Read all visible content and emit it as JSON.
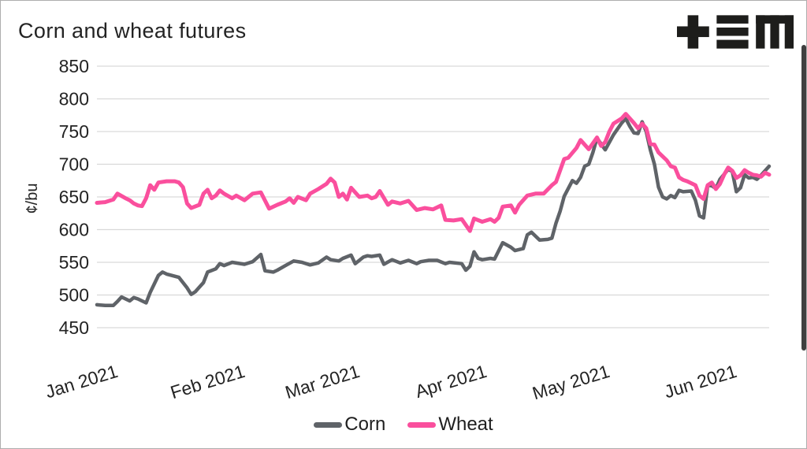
{
  "title": "Corn and wheat futures",
  "logo": {
    "glyphs": [
      "plus",
      "triple-bar",
      "letter-m"
    ],
    "color": "#1d1d1b"
  },
  "colors": {
    "corn": "#5f6368",
    "wheat": "#fa4f9d",
    "grid": "#d9d9d9",
    "text": "#232323",
    "scrollbar": "#3f3f3f",
    "frame_border": "#aeaeae"
  },
  "legend": {
    "corn_label": "Corn",
    "wheat_label": "Wheat"
  },
  "chart_data": {
    "type": "line",
    "title": "Corn and wheat futures",
    "xlabel": "",
    "ylabel": "¢/bu",
    "ylim": [
      450,
      850
    ],
    "yticks": [
      450,
      500,
      550,
      600,
      650,
      700,
      750,
      800,
      850
    ],
    "grid": "horizontal",
    "legend_position": "bottom",
    "x_unit": "days since 2021-01-01",
    "x_domain_days": [
      0,
      164
    ],
    "xticks": [
      {
        "label": "Jan 2021",
        "day": 0
      },
      {
        "label": "Feb 2021",
        "day": 31
      },
      {
        "label": "Mar 2021",
        "day": 59
      },
      {
        "label": "Apr 2021",
        "day": 90
      },
      {
        "label": "May 2021",
        "day": 120
      },
      {
        "label": "Jun 2021",
        "day": 151
      }
    ],
    "series": [
      {
        "name": "Corn",
        "color": "#5f6368",
        "points": [
          [
            0,
            485
          ],
          [
            2,
            484
          ],
          [
            4,
            484
          ],
          [
            5,
            490
          ],
          [
            6,
            497
          ],
          [
            8,
            491
          ],
          [
            9,
            496
          ],
          [
            10,
            494
          ],
          [
            12,
            488
          ],
          [
            13,
            504
          ],
          [
            15,
            530
          ],
          [
            16,
            535
          ],
          [
            17,
            532
          ],
          [
            20,
            527
          ],
          [
            22,
            511
          ],
          [
            23,
            501
          ],
          [
            24,
            505
          ],
          [
            26,
            519
          ],
          [
            27,
            535
          ],
          [
            29,
            540
          ],
          [
            30,
            548
          ],
          [
            31,
            545
          ],
          [
            33,
            550
          ],
          [
            36,
            547
          ],
          [
            38,
            551
          ],
          [
            40,
            562
          ],
          [
            41,
            537
          ],
          [
            43,
            535
          ],
          [
            44,
            538
          ],
          [
            46,
            545
          ],
          [
            48,
            552
          ],
          [
            50,
            550
          ],
          [
            52,
            546
          ],
          [
            54,
            549
          ],
          [
            56,
            558
          ],
          [
            57,
            554
          ],
          [
            59,
            552
          ],
          [
            60,
            556
          ],
          [
            62,
            561
          ],
          [
            63,
            548
          ],
          [
            65,
            558
          ],
          [
            66,
            560
          ],
          [
            67,
            559
          ],
          [
            69,
            561
          ],
          [
            70,
            547
          ],
          [
            72,
            554
          ],
          [
            74,
            549
          ],
          [
            76,
            553
          ],
          [
            78,
            548
          ],
          [
            79,
            551
          ],
          [
            81,
            553
          ],
          [
            83,
            553
          ],
          [
            85,
            548
          ],
          [
            86,
            550
          ],
          [
            89,
            548
          ],
          [
            90,
            538
          ],
          [
            91,
            544
          ],
          [
            92,
            566
          ],
          [
            93,
            556
          ],
          [
            94,
            554
          ],
          [
            96,
            556
          ],
          [
            97,
            555
          ],
          [
            99,
            580
          ],
          [
            101,
            573
          ],
          [
            102,
            568
          ],
          [
            104,
            571
          ],
          [
            105,
            592
          ],
          [
            106,
            596
          ],
          [
            108,
            584
          ],
          [
            110,
            585
          ],
          [
            111,
            587
          ],
          [
            112,
            610
          ],
          [
            113,
            628
          ],
          [
            114,
            651
          ],
          [
            116,
            675
          ],
          [
            117,
            671
          ],
          [
            118,
            680
          ],
          [
            119,
            697
          ],
          [
            120,
            700
          ],
          [
            121,
            718
          ],
          [
            122,
            740
          ],
          [
            123,
            731
          ],
          [
            124,
            722
          ],
          [
            126,
            745
          ],
          [
            128,
            763
          ],
          [
            129,
            770
          ],
          [
            130,
            758
          ],
          [
            131,
            748
          ],
          [
            132,
            747
          ],
          [
            133,
            765
          ],
          [
            134,
            750
          ],
          [
            135,
            722
          ],
          [
            136,
            700
          ],
          [
            137,
            665
          ],
          [
            138,
            650
          ],
          [
            139,
            647
          ],
          [
            140,
            652
          ],
          [
            141,
            649
          ],
          [
            142,
            660
          ],
          [
            143,
            658
          ],
          [
            145,
            659
          ],
          [
            146,
            645
          ],
          [
            147,
            621
          ],
          [
            148,
            618
          ],
          [
            149,
            668
          ],
          [
            150,
            667
          ],
          [
            151,
            663
          ],
          [
            152,
            677
          ],
          [
            154,
            692
          ],
          [
            155,
            689
          ],
          [
            156,
            658
          ],
          [
            157,
            664
          ],
          [
            158,
            684
          ],
          [
            159,
            679
          ],
          [
            160,
            680
          ],
          [
            161,
            677
          ],
          [
            162,
            683
          ],
          [
            163,
            690
          ],
          [
            164,
            697
          ]
        ]
      },
      {
        "name": "Wheat",
        "color": "#fa4f9d",
        "points": [
          [
            0,
            641
          ],
          [
            2,
            642
          ],
          [
            4,
            646
          ],
          [
            5,
            655
          ],
          [
            7,
            648
          ],
          [
            8,
            645
          ],
          [
            9,
            640
          ],
          [
            10,
            637
          ],
          [
            11,
            636
          ],
          [
            12,
            648
          ],
          [
            13,
            668
          ],
          [
            14,
            661
          ],
          [
            15,
            672
          ],
          [
            17,
            674
          ],
          [
            19,
            674
          ],
          [
            20,
            672
          ],
          [
            21,
            665
          ],
          [
            22,
            640
          ],
          [
            23,
            633
          ],
          [
            25,
            638
          ],
          [
            26,
            655
          ],
          [
            27,
            661
          ],
          [
            28,
            648
          ],
          [
            29,
            652
          ],
          [
            30,
            660
          ],
          [
            31,
            655
          ],
          [
            33,
            648
          ],
          [
            34,
            652
          ],
          [
            36,
            645
          ],
          [
            37,
            650
          ],
          [
            38,
            655
          ],
          [
            40,
            657
          ],
          [
            42,
            632
          ],
          [
            44,
            638
          ],
          [
            46,
            643
          ],
          [
            47,
            648
          ],
          [
            48,
            641
          ],
          [
            49,
            650
          ],
          [
            51,
            645
          ],
          [
            52,
            655
          ],
          [
            54,
            662
          ],
          [
            56,
            670
          ],
          [
            57,
            678
          ],
          [
            58,
            672
          ],
          [
            59,
            650
          ],
          [
            60,
            655
          ],
          [
            61,
            646
          ],
          [
            62,
            664
          ],
          [
            64,
            650
          ],
          [
            66,
            652
          ],
          [
            67,
            648
          ],
          [
            68,
            650
          ],
          [
            69,
            659
          ],
          [
            71,
            638
          ],
          [
            72,
            643
          ],
          [
            74,
            640
          ],
          [
            76,
            644
          ],
          [
            78,
            630
          ],
          [
            80,
            633
          ],
          [
            82,
            631
          ],
          [
            84,
            637
          ],
          [
            85,
            615
          ],
          [
            87,
            614
          ],
          [
            89,
            616
          ],
          [
            91,
            598
          ],
          [
            92,
            617
          ],
          [
            94,
            612
          ],
          [
            96,
            616
          ],
          [
            97,
            612
          ],
          [
            98,
            618
          ],
          [
            99,
            635
          ],
          [
            101,
            637
          ],
          [
            102,
            626
          ],
          [
            103,
            638
          ],
          [
            105,
            652
          ],
          [
            107,
            655
          ],
          [
            109,
            655
          ],
          [
            111,
            668
          ],
          [
            112,
            673
          ],
          [
            114,
            708
          ],
          [
            115,
            710
          ],
          [
            117,
            725
          ],
          [
            118,
            737
          ],
          [
            120,
            723
          ],
          [
            122,
            741
          ],
          [
            123,
            728
          ],
          [
            124,
            734
          ],
          [
            125,
            750
          ],
          [
            126,
            762
          ],
          [
            128,
            770
          ],
          [
            129,
            777
          ],
          [
            130,
            770
          ],
          [
            131,
            763
          ],
          [
            132,
            755
          ],
          [
            133,
            762
          ],
          [
            134,
            755
          ],
          [
            135,
            731
          ],
          [
            136,
            730
          ],
          [
            137,
            718
          ],
          [
            139,
            706
          ],
          [
            140,
            697
          ],
          [
            141,
            695
          ],
          [
            142,
            680
          ],
          [
            143,
            676
          ],
          [
            144,
            674
          ],
          [
            146,
            668
          ],
          [
            147,
            652
          ],
          [
            148,
            647
          ],
          [
            149,
            668
          ],
          [
            150,
            672
          ],
          [
            151,
            662
          ],
          [
            152,
            670
          ],
          [
            153,
            684
          ],
          [
            154,
            695
          ],
          [
            155,
            690
          ],
          [
            156,
            679
          ],
          [
            157,
            683
          ],
          [
            158,
            691
          ],
          [
            159,
            687
          ],
          [
            160,
            684
          ],
          [
            161,
            683
          ],
          [
            162,
            681
          ],
          [
            163,
            687
          ],
          [
            164,
            684
          ]
        ]
      }
    ]
  }
}
